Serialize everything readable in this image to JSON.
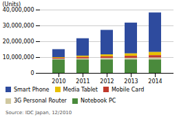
{
  "chart_data": {
    "type": "bar",
    "stacked": true,
    "categories": [
      "2010",
      "2011",
      "2012",
      "2013",
      "2014"
    ],
    "series": [
      {
        "name": "Smart Phone",
        "color": "#2E4B9E",
        "values": [
          5000000,
          11000000,
          15500000,
          19500000,
          25000000
        ]
      },
      {
        "name": "Media Tablet",
        "color": "#E8C000",
        "values": [
          400000,
          800000,
          1200000,
          1500000,
          2000000
        ]
      },
      {
        "name": "Mobile Card",
        "color": "#C0392B",
        "values": [
          700000,
          900000,
          1100000,
          1300000,
          1500000
        ]
      },
      {
        "name": "3G Personal Router",
        "color": "#D0C8A0",
        "values": [
          400000,
          700000,
          900000,
          1000000,
          1200000
        ]
      },
      {
        "name": "Notebook PC",
        "color": "#4A8A3C",
        "values": [
          8500000,
          8500000,
          8500000,
          8500000,
          8500000
        ]
      }
    ],
    "ylabel": "(Units)",
    "ylim": [
      0,
      40000000
    ],
    "yticks": [
      0,
      {
        "value": 10000000,
        "label": "10,000,000"
      },
      {
        "value": 20000000,
        "label": "20,000,000"
      },
      {
        "value": 30000000,
        "label": "30,000,000"
      },
      {
        "value": 40000000,
        "label": "40,000,000"
      }
    ],
    "grid": true,
    "legend": "bottom",
    "caption": "Source: IDC Japan, 12/2010"
  }
}
